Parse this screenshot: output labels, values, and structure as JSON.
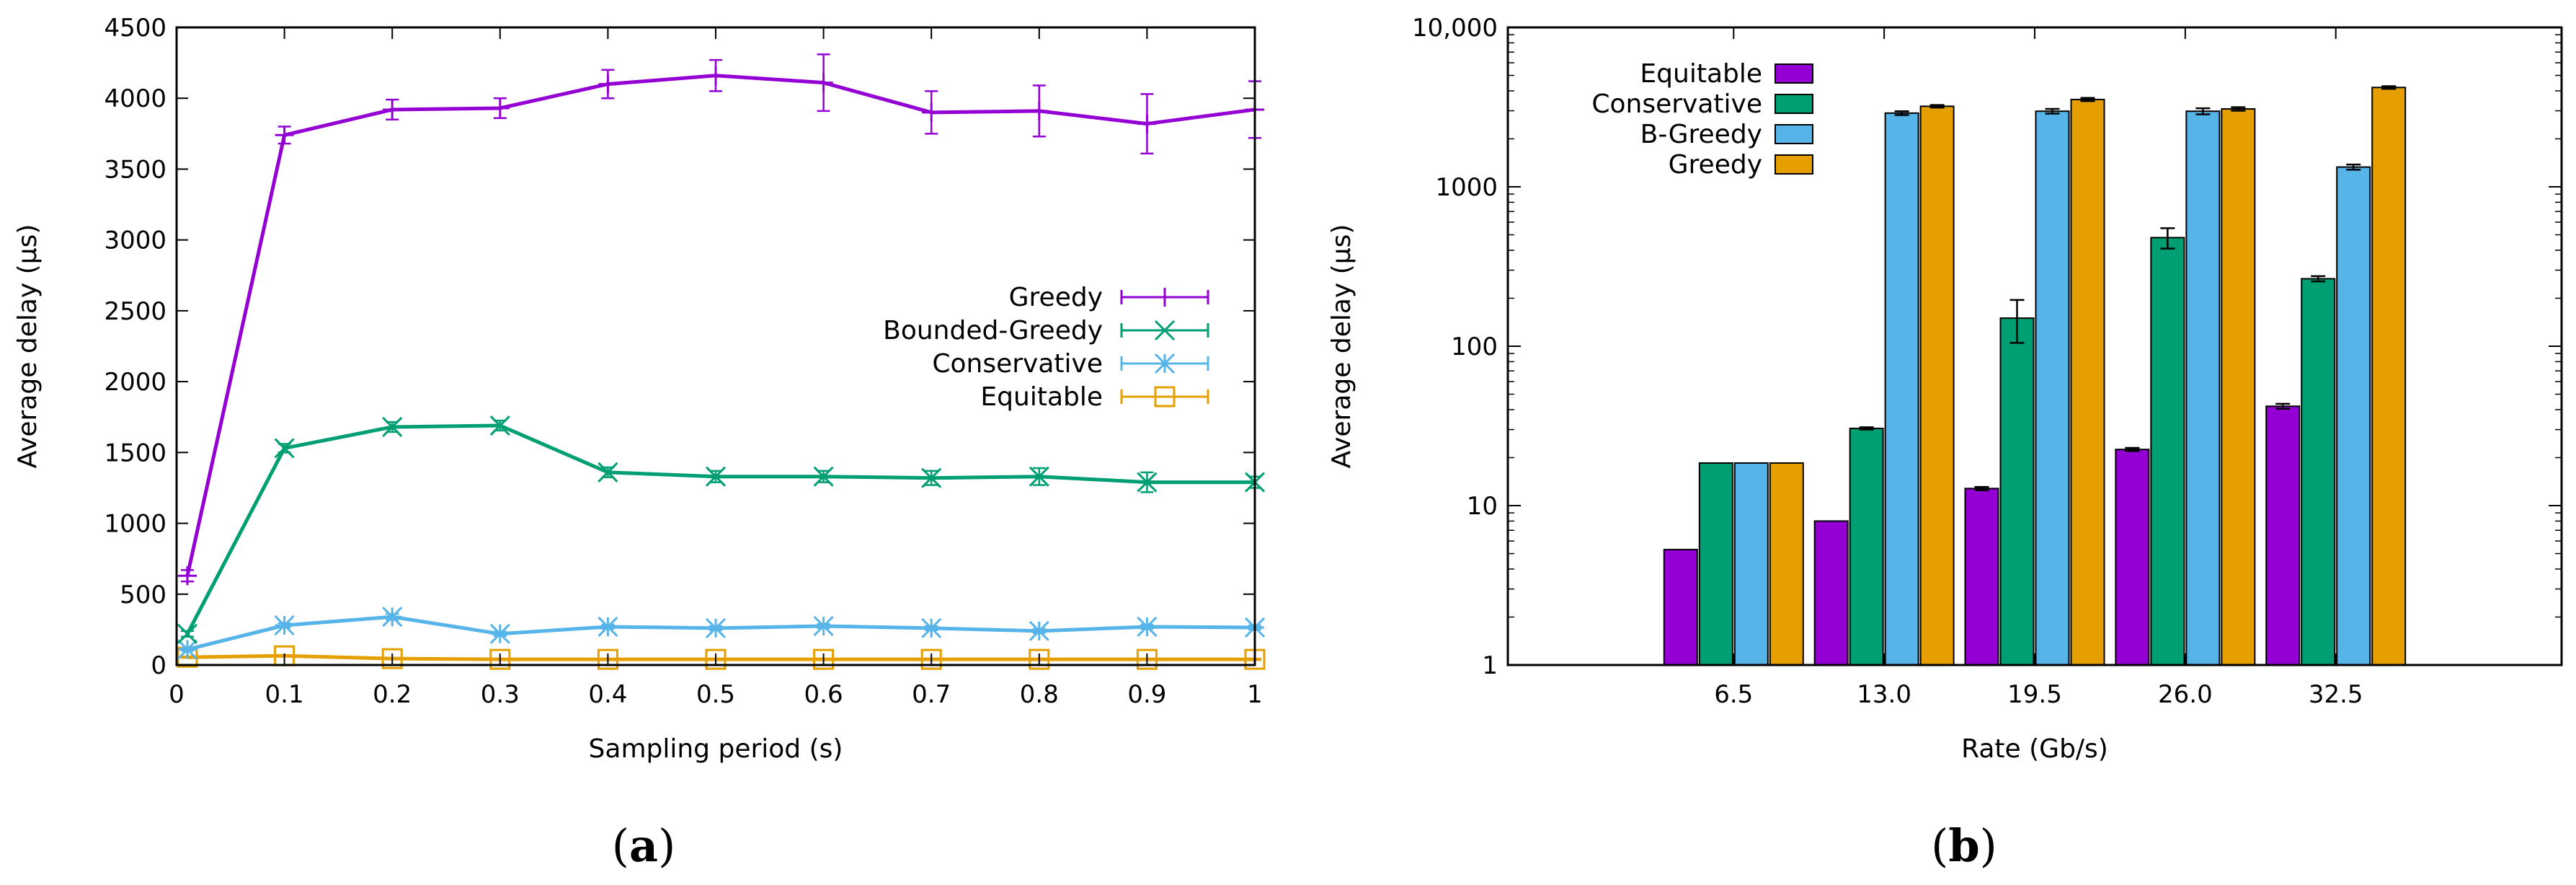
{
  "chart_data": [
    {
      "type": "line",
      "panel_label": "a",
      "xlabel": "Sampling period (s)",
      "ylabel": "Average delay (μs)",
      "xlim": [
        0,
        1
      ],
      "ylim": [
        0,
        4500
      ],
      "xticks": [
        0,
        0.1,
        0.2,
        0.3,
        0.4,
        0.5,
        0.6,
        0.7,
        0.8,
        0.9,
        1
      ],
      "xtick_labels": [
        "0",
        "0.1",
        "0.2",
        "0.3",
        "0.4",
        "0.5",
        "0.6",
        "0.7",
        "0.8",
        "0.9",
        "1"
      ],
      "yticks": [
        0,
        500,
        1000,
        1500,
        2000,
        2500,
        3000,
        3500,
        4000,
        4500
      ],
      "ytick_labels": [
        "0",
        "500",
        "1000",
        "1500",
        "2000",
        "2500",
        "3000",
        "3500",
        "4000",
        "4500"
      ],
      "legend_position": "center-right",
      "x": [
        0.01,
        0.1,
        0.2,
        0.3,
        0.4,
        0.5,
        0.6,
        0.7,
        0.8,
        0.9,
        1.0
      ],
      "series": [
        {
          "name": "Greedy",
          "color": "#9400d3",
          "marker": "plus",
          "values": [
            630,
            3740,
            3920,
            3930,
            4100,
            4160,
            4110,
            3900,
            3910,
            3820,
            3920
          ],
          "errors": [
            40,
            60,
            70,
            70,
            100,
            110,
            200,
            150,
            180,
            210,
            200
          ]
        },
        {
          "name": "Bounded-Greedy",
          "color": "#009e73",
          "marker": "cross",
          "values": [
            220,
            1530,
            1680,
            1690,
            1360,
            1330,
            1330,
            1320,
            1330,
            1290,
            1290
          ],
          "errors": [
            20,
            30,
            35,
            35,
            35,
            40,
            40,
            50,
            60,
            70,
            40
          ]
        },
        {
          "name": "Conservative",
          "color": "#56b4e9",
          "marker": "star",
          "values": [
            110,
            280,
            340,
            220,
            270,
            260,
            275,
            260,
            240,
            270,
            265
          ],
          "errors": [
            10,
            15,
            20,
            15,
            15,
            15,
            15,
            15,
            15,
            15,
            15
          ]
        },
        {
          "name": "Equitable",
          "color": "#e69f00",
          "marker": "square",
          "values": [
            55,
            65,
            45,
            40,
            40,
            40,
            40,
            40,
            40,
            40,
            40
          ],
          "errors": [
            5,
            5,
            5,
            5,
            5,
            5,
            5,
            5,
            5,
            5,
            5
          ]
        }
      ]
    },
    {
      "type": "bar",
      "panel_label": "b",
      "xlabel": "Rate (Gb/s)",
      "ylabel": "Average delay (μs)",
      "yscale": "log",
      "ylim": [
        1,
        10000
      ],
      "yticks": [
        1,
        10,
        100,
        1000,
        10000
      ],
      "ytick_labels": [
        "1",
        "10",
        "100",
        "1000",
        "10,000"
      ],
      "categories": [
        "6.5",
        "13.0",
        "19.5",
        "26.0",
        "32.5"
      ],
      "legend_position": "top-left",
      "series": [
        {
          "name": "Equitable",
          "color": "#9400d3",
          "values": [
            5.3,
            8.0,
            12.8,
            22.5,
            42
          ],
          "errors": [
            0,
            0,
            0.3,
            0.5,
            1.5
          ]
        },
        {
          "name": "Conservative",
          "color": "#009e73",
          "values": [
            18.5,
            30.5,
            150,
            480,
            265
          ],
          "errors": [
            0,
            0.5,
            45,
            70,
            10
          ]
        },
        {
          "name": "B-Greedy",
          "color": "#56b4e9",
          "values": [
            18.5,
            2900,
            2980,
            2980,
            1330
          ],
          "errors": [
            0,
            80,
            100,
            130,
            50
          ]
        },
        {
          "name": "Greedy",
          "color": "#e69f00",
          "values": [
            18.5,
            3200,
            3530,
            3080,
            4200
          ],
          "errors": [
            0,
            60,
            80,
            80,
            80
          ]
        }
      ]
    }
  ]
}
